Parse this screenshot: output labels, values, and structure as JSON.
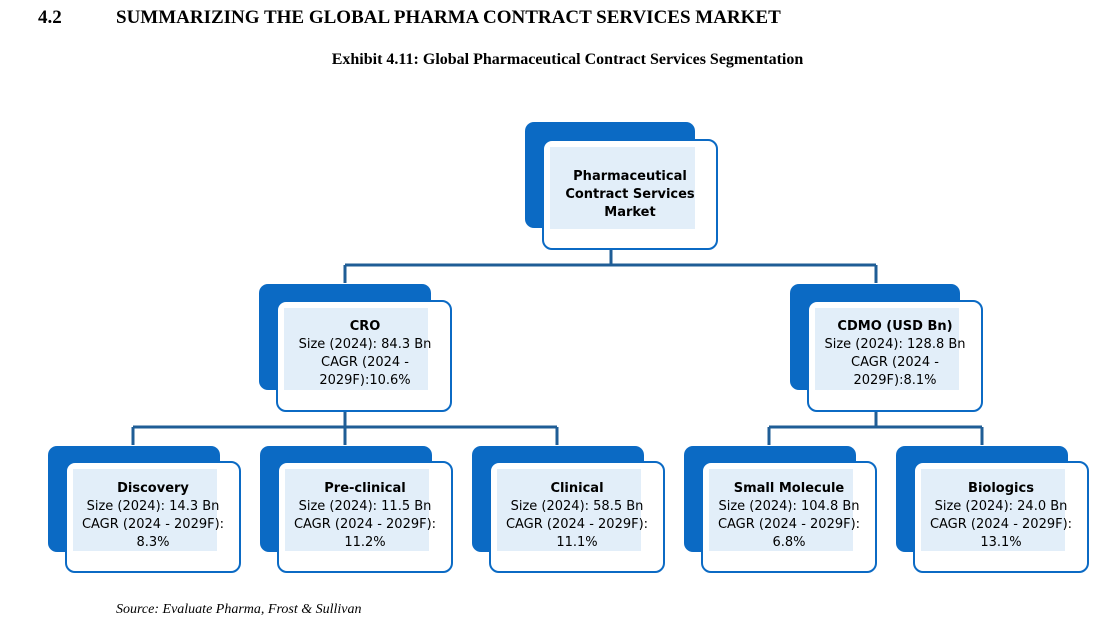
{
  "heading": {
    "number": "4.2",
    "title": "SUMMARIZING THE GLOBAL PHARMA CONTRACT SERVICES MARKET"
  },
  "exhibit_title": "Exhibit 4.11: Global Pharmaceutical Contract Services Segmentation",
  "source": "Source: Evaluate Pharma, Frost & Sullivan",
  "colors": {
    "accent": "#0b6ac4",
    "fill": "#e2eef9",
    "connector": "#1f5d96"
  },
  "root": {
    "name": "Pharmaceutical Contract Services Market"
  },
  "cro": {
    "name": "CRO",
    "size": "Size (2024): 84.3 Bn",
    "cagr": "CAGR (2024 - 2029F):10.6%",
    "children": [
      {
        "name": "Discovery",
        "size": "Size (2024): 14.3 Bn",
        "cagr": "CAGR (2024 - 2029F): 8.3%"
      },
      {
        "name": "Pre-clinical",
        "size": "Size (2024): 11.5 Bn",
        "cagr": "CAGR (2024 - 2029F): 11.2%"
      },
      {
        "name": "Clinical",
        "size": "Size (2024): 58.5 Bn",
        "cagr": "CAGR (2024 - 2029F): 11.1%"
      }
    ]
  },
  "cdmo": {
    "name": "CDMO (USD Bn)",
    "size": "Size (2024): 128.8 Bn",
    "cagr": "CAGR (2024 - 2029F):8.1%",
    "children": [
      {
        "name": "Small Molecule",
        "size": "Size (2024): 104.8 Bn",
        "cagr": "CAGR (2024 - 2029F): 6.8%"
      },
      {
        "name": "Biologics",
        "size": "Size (2024): 24.0 Bn",
        "cagr": "CAGR (2024 - 2029F): 13.1%"
      }
    ]
  }
}
